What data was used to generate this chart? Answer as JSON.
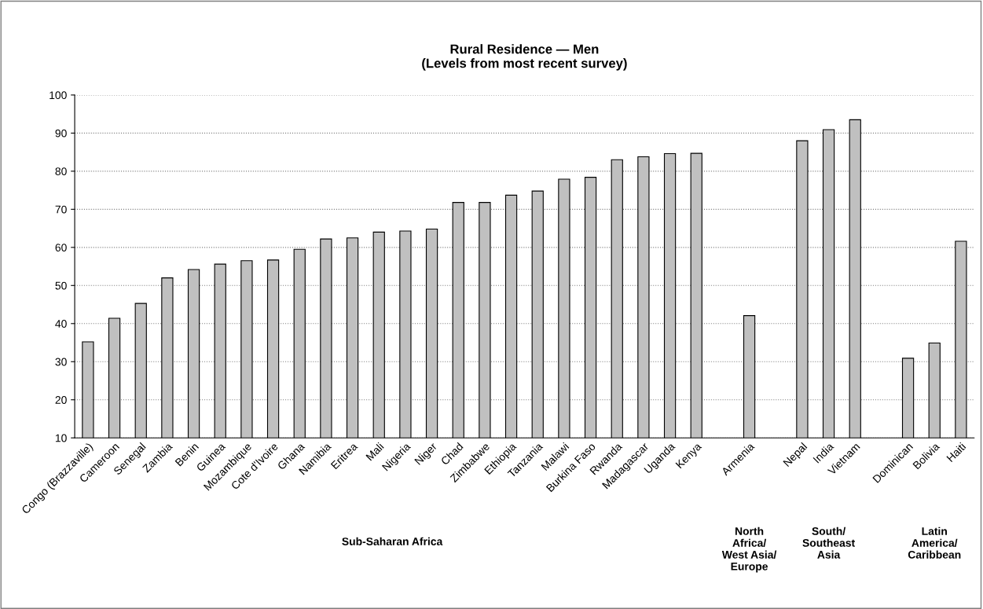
{
  "chart_data": {
    "type": "bar",
    "title": "Rural Residence — Men\n(Levels from most recent survey)",
    "categories": [
      "Congo (Brazzaville)",
      "Cameroon",
      "Senegal",
      "Zambia",
      "Benin",
      "Guinea",
      "Mozambique",
      "Cote d'Ivoire",
      "Ghana",
      "Namibia",
      "Eritrea",
      "Mali",
      "Nigeria",
      "Niger",
      "Chad",
      "Zimbabwe",
      "Ethiopia",
      "Tanzania",
      "Malawi",
      "Burkina Faso",
      "Rwanda",
      "Madagascar",
      "Uganda",
      "Kenya",
      null,
      "Armenia",
      null,
      "Nepal",
      "India",
      "Vietnam",
      null,
      "Dominican",
      "Bolivia",
      "Haiti"
    ],
    "values": [
      35.2,
      41.4,
      45.3,
      52.0,
      54.2,
      55.6,
      56.5,
      56.7,
      59.5,
      62.2,
      62.5,
      64.0,
      64.3,
      64.8,
      71.8,
      71.8,
      73.7,
      74.8,
      77.9,
      78.4,
      83.0,
      83.8,
      84.6,
      84.7,
      null,
      42.1,
      null,
      88.0,
      90.9,
      93.5,
      null,
      30.9,
      34.9,
      61.6
    ],
    "color": "#c0c0c0",
    "ylim": [
      10,
      100
    ],
    "yticks": [
      10,
      20,
      30,
      40,
      50,
      60,
      70,
      80,
      90,
      100
    ],
    "grid": "y",
    "annotations": [
      "Sub-Saharan Africa",
      "North\nAfrica/\nWest Asia/\nEurope",
      "South/\nSoutheast\nAsia",
      "Latin\nAmerica/\nCaribbean"
    ]
  }
}
